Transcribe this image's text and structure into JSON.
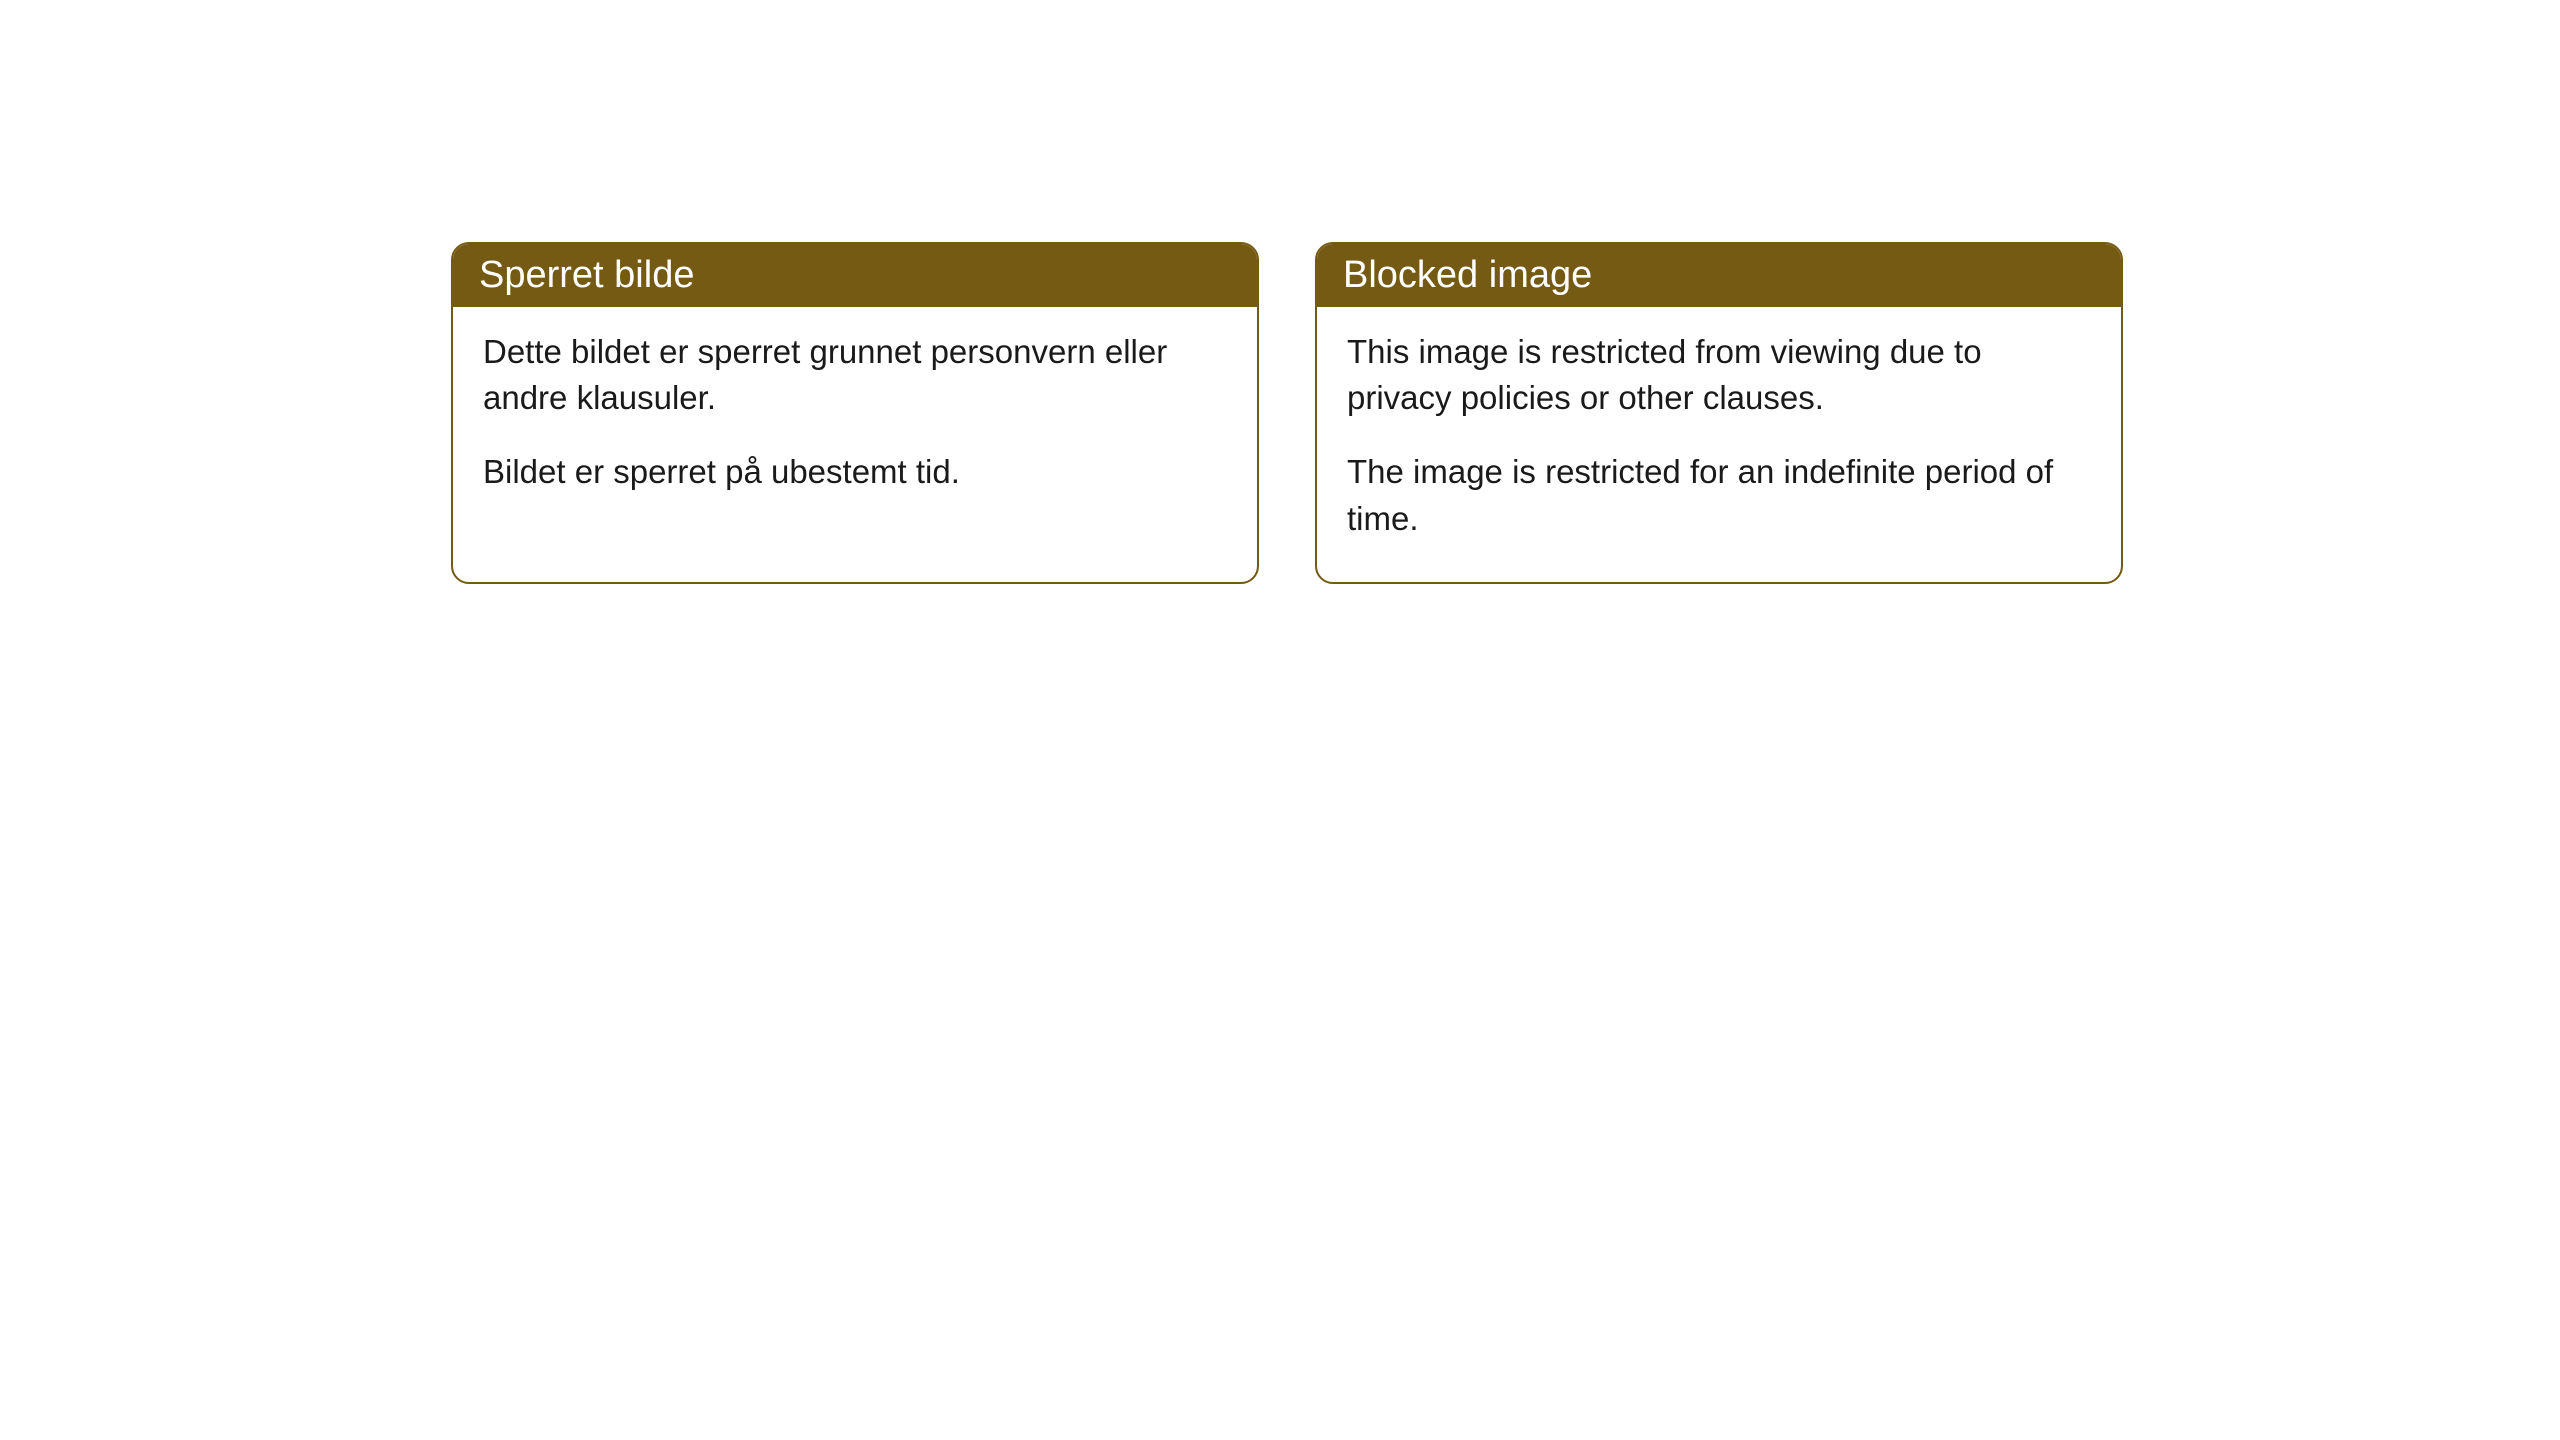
{
  "cards": [
    {
      "header": "Sperret bilde",
      "paragraph1": "Dette bildet er sperret grunnet personvern eller andre klausuler.",
      "paragraph2": "Bildet er sperret på ubestemt tid."
    },
    {
      "header": "Blocked image",
      "paragraph1": "This image is restricted from viewing due to privacy policies or other clauses.",
      "paragraph2": "The image is restricted for an indefinite period of time."
    }
  ],
  "colors": {
    "header_bg": "#755a13",
    "header_text": "#ffffff",
    "border": "#755a13",
    "body_bg": "#ffffff",
    "body_text": "#1a1a1a"
  }
}
